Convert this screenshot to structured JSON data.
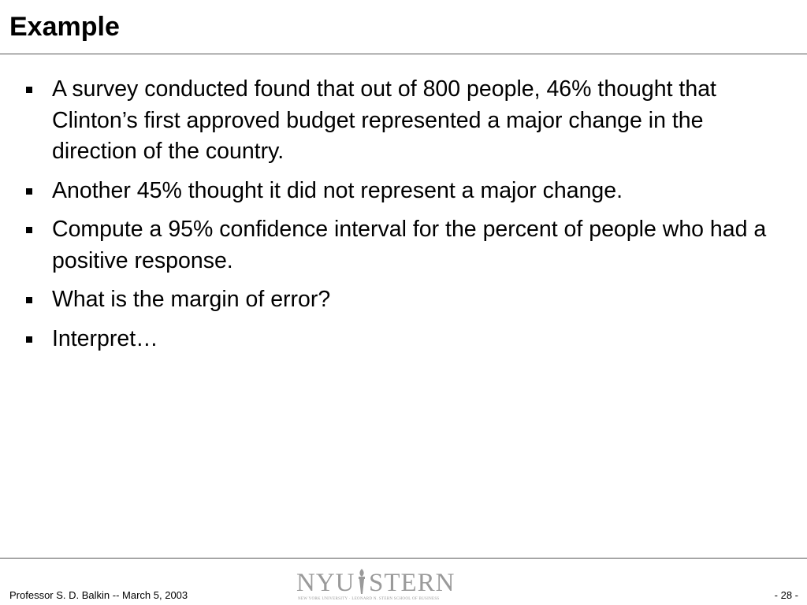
{
  "header": {
    "title": "Example"
  },
  "bullets": [
    "A survey conducted found that out of 800 people, 46% thought that Clinton’s first approved budget represented a major change in the direction of the country.",
    "Another 45% thought it did not represent a major change.",
    "Compute a 95% confidence interval for the percent of people who had a positive response.",
    "What is the margin of error?",
    "Interpret…"
  ],
  "footer": {
    "author_date": "Professor S. D. Balkin -- March 5, 2003",
    "page": "- 28 -",
    "logo": {
      "left": "NYU",
      "right": "STERN",
      "tagline": "NEW YORK UNIVERSITY · LEONARD N. STERN SCHOOL OF BUSINESS"
    }
  }
}
